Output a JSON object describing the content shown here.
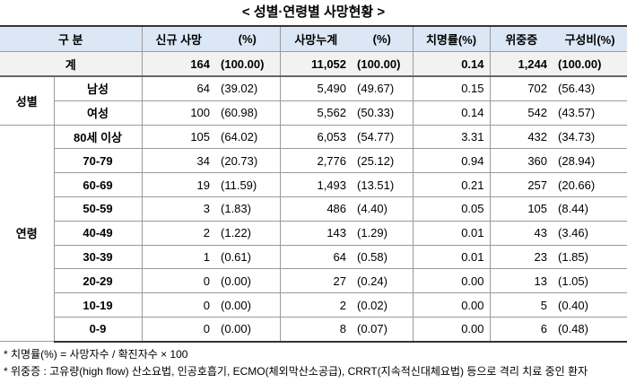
{
  "title": "< 성별·연령별 사망현황 >",
  "table": {
    "header": [
      "구 분",
      "신규 사망",
      "(%)",
      "사망누계",
      "(%)",
      "치명률(%)",
      "위중증",
      "구성비(%)"
    ],
    "total": {
      "label": "계",
      "cells": [
        "164",
        "(100.00)",
        "11,052",
        "(100.00)",
        "0.14",
        "1,244",
        "(100.00)"
      ]
    },
    "groups": [
      {
        "label": "성별",
        "rows": [
          {
            "label": "남성",
            "cells": [
              "64",
              "(39.02)",
              "5,490",
              "(49.67)",
              "0.15",
              "702",
              "(56.43)"
            ]
          },
          {
            "label": "여성",
            "cells": [
              "100",
              "(60.98)",
              "5,562",
              "(50.33)",
              "0.14",
              "542",
              "(43.57)"
            ]
          }
        ]
      },
      {
        "label": "연령",
        "rows": [
          {
            "label": "80세 이상",
            "cells": [
              "105",
              "(64.02)",
              "6,053",
              "(54.77)",
              "3.31",
              "432",
              "(34.73)"
            ]
          },
          {
            "label": "70-79",
            "cells": [
              "34",
              "(20.73)",
              "2,776",
              "(25.12)",
              "0.94",
              "360",
              "(28.94)"
            ]
          },
          {
            "label": "60-69",
            "cells": [
              "19",
              "(11.59)",
              "1,493",
              "(13.51)",
              "0.21",
              "257",
              "(20.66)"
            ]
          },
          {
            "label": "50-59",
            "cells": [
              "3",
              "(1.83)",
              "486",
              "(4.40)",
              "0.05",
              "105",
              "(8.44)"
            ]
          },
          {
            "label": "40-49",
            "cells": [
              "2",
              "(1.22)",
              "143",
              "(1.29)",
              "0.01",
              "43",
              "(3.46)"
            ]
          },
          {
            "label": "30-39",
            "cells": [
              "1",
              "(0.61)",
              "64",
              "(0.58)",
              "0.01",
              "23",
              "(1.85)"
            ]
          },
          {
            "label": "20-29",
            "cells": [
              "0",
              "(0.00)",
              "27",
              "(0.24)",
              "0.00",
              "13",
              "(1.05)"
            ]
          },
          {
            "label": "10-19",
            "cells": [
              "0",
              "(0.00)",
              "2",
              "(0.02)",
              "0.00",
              "5",
              "(0.40)"
            ]
          },
          {
            "label": "0-9",
            "cells": [
              "0",
              "(0.00)",
              "8",
              "(0.07)",
              "0.00",
              "6",
              "(0.48)"
            ]
          }
        ]
      }
    ]
  },
  "notes": [
    "* 치명률(%) = 사망자수 / 확진자수 × 100",
    "* 위중증 : 고유량(high flow) 산소요법, 인공호흡기, ECMO(체외막산소공급), CRRT(지속적신대체요법) 등으로 격리 치료 중인 환자"
  ]
}
